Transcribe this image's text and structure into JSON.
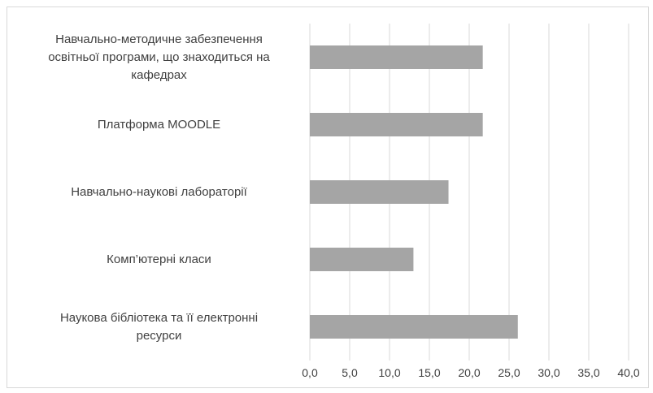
{
  "chart_data": {
    "type": "bar",
    "orientation": "horizontal",
    "categories": [
      "Навчально-методичне забезпечення освітньої програми, що знаходиться на кафедрах",
      "Платформа MOODLE",
      "Навчально-наукові лабораторії",
      "Комп’ютерні класи",
      "Наукова бібліотека та її електронні ресурси"
    ],
    "category_lines": [
      [
        "Навчально-методичне забезпечення",
        "освітньої програми, що знаходиться на",
        "кафедрах"
      ],
      [
        "Платформа MOODLE"
      ],
      [
        "Навчально-наукові лабораторії"
      ],
      [
        "Комп’ютерні класи"
      ],
      [
        "Наукова бібліотека та її електронні",
        "ресурси"
      ]
    ],
    "values": [
      21.7,
      21.7,
      17.4,
      13.0,
      26.1
    ],
    "xlim": [
      0,
      40
    ],
    "xticks": [
      "0,0",
      "5,0",
      "10,0",
      "15,0",
      "20,0",
      "25,0",
      "30,0",
      "35,0",
      "40,0"
    ],
    "title": "",
    "xlabel": "",
    "ylabel": "",
    "grid": "vertical",
    "legend": "none",
    "colors": {
      "bar": "#a5a5a5",
      "grid": "#d9d9d9",
      "text": "#404040"
    }
  }
}
